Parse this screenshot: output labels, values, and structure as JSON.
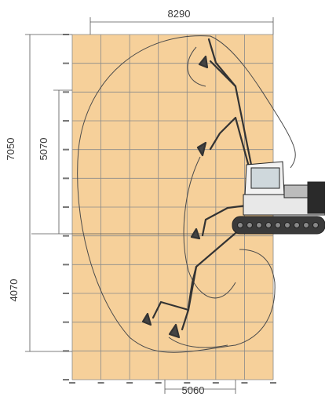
{
  "diagram": {
    "dimensions": {
      "overall_width": "8290",
      "total_height": "7050",
      "upper_height": "5070",
      "lower_depth": "4070",
      "bottom_width": "5060"
    },
    "colors": {
      "grid_background": "#f6d09a",
      "grid_line": "#8a8a8a",
      "outline": "#4a4a4a",
      "machine": "#333333"
    }
  }
}
